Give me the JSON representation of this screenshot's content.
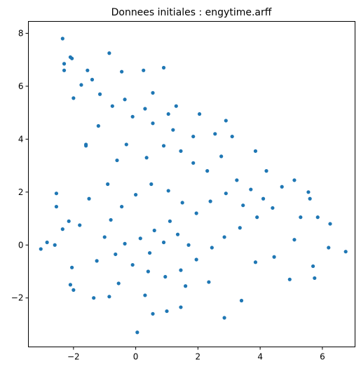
{
  "chart_data": {
    "type": "scatter",
    "title": "Donnees initiales : engytime.arff",
    "xlabel": "",
    "ylabel": "",
    "xlim": [
      -3.45,
      7.05
    ],
    "ylim": [
      -3.85,
      8.45
    ],
    "xticks": [
      -2,
      0,
      2,
      4,
      6
    ],
    "yticks": [
      -2,
      0,
      2,
      4,
      6,
      8
    ],
    "xtick_labels": [
      "−2",
      "0",
      "2",
      "4",
      "6"
    ],
    "ytick_labels": [
      "−2",
      "0",
      "2",
      "4",
      "6",
      "8"
    ],
    "grid": false,
    "legend": "none",
    "marker_color": "#1f77b4",
    "series": [
      {
        "points": [
          [
            -3.05,
            -0.15
          ],
          [
            -2.85,
            0.1
          ],
          [
            -2.55,
            1.95
          ],
          [
            -2.55,
            1.45
          ],
          [
            -2.6,
            0.0
          ],
          [
            -2.35,
            7.8
          ],
          [
            -2.3,
            6.85
          ],
          [
            -2.3,
            6.6
          ],
          [
            -2.1,
            7.1
          ],
          [
            -2.05,
            7.05
          ],
          [
            -2.0,
            5.55
          ],
          [
            -1.75,
            6.05
          ],
          [
            -1.6,
            3.8
          ],
          [
            -0.85,
            7.25
          ],
          [
            -1.55,
            6.6
          ],
          [
            -1.6,
            3.75
          ],
          [
            -2.1,
            -1.5
          ],
          [
            -2.0,
            -1.7
          ],
          [
            -1.35,
            -2.0
          ],
          [
            -0.85,
            -1.95
          ],
          [
            -2.05,
            -0.85
          ],
          [
            -2.35,
            0.6
          ],
          [
            -2.15,
            0.9
          ],
          [
            0.05,
            -3.3
          ],
          [
            0.55,
            -2.6
          ],
          [
            1.0,
            -2.5
          ],
          [
            1.45,
            -2.35
          ],
          [
            2.85,
            -2.75
          ],
          [
            3.4,
            -2.1
          ],
          [
            4.95,
            -1.3
          ],
          [
            5.75,
            -1.25
          ],
          [
            5.7,
            -0.8
          ],
          [
            6.75,
            -0.25
          ],
          [
            6.2,
            -0.1
          ],
          [
            6.25,
            0.8
          ],
          [
            5.85,
            1.05
          ],
          [
            5.6,
            1.75
          ],
          [
            5.55,
            2.0
          ],
          [
            5.1,
            2.45
          ],
          [
            0.9,
            6.7
          ],
          [
            0.25,
            6.6
          ],
          [
            1.3,
            5.25
          ],
          [
            2.05,
            4.95
          ],
          [
            2.9,
            4.7
          ],
          [
            -0.45,
            6.55
          ],
          [
            0.55,
            5.75
          ],
          [
            -1.2,
            4.5
          ],
          [
            -0.6,
            3.2
          ],
          [
            -0.9,
            2.3
          ],
          [
            -1.5,
            1.75
          ],
          [
            -1.8,
            0.75
          ],
          [
            -1.25,
            -0.6
          ],
          [
            -0.55,
            -1.45
          ],
          [
            0.3,
            -1.9
          ],
          [
            1.6,
            -1.55
          ],
          [
            2.35,
            -1.4
          ],
          [
            3.85,
            -0.65
          ],
          [
            4.45,
            -0.45
          ],
          [
            5.1,
            0.2
          ],
          [
            5.3,
            1.05
          ],
          [
            4.7,
            2.2
          ],
          [
            4.2,
            2.8
          ],
          [
            3.85,
            3.55
          ],
          [
            3.1,
            4.1
          ],
          [
            2.55,
            4.2
          ],
          [
            1.85,
            4.1
          ],
          [
            1.2,
            4.35
          ],
          [
            0.55,
            4.6
          ],
          [
            -0.1,
            4.85
          ],
          [
            -0.75,
            5.25
          ],
          [
            -1.15,
            5.7
          ],
          [
            -1.4,
            6.25
          ],
          [
            -0.35,
            5.5
          ],
          [
            0.3,
            5.15
          ],
          [
            1.05,
            4.95
          ],
          [
            -0.3,
            3.8
          ],
          [
            0.35,
            3.3
          ],
          [
            0.9,
            3.75
          ],
          [
            1.45,
            3.55
          ],
          [
            1.85,
            3.1
          ],
          [
            2.3,
            2.8
          ],
          [
            2.75,
            3.35
          ],
          [
            3.25,
            2.45
          ],
          [
            3.7,
            2.1
          ],
          [
            4.1,
            1.75
          ],
          [
            4.4,
            1.4
          ],
          [
            3.9,
            1.05
          ],
          [
            3.35,
            0.65
          ],
          [
            2.85,
            0.3
          ],
          [
            2.45,
            -0.1
          ],
          [
            1.95,
            -0.55
          ],
          [
            1.45,
            -0.95
          ],
          [
            0.95,
            -1.2
          ],
          [
            0.4,
            -1.0
          ],
          [
            -0.1,
            -0.75
          ],
          [
            -0.65,
            -0.35
          ],
          [
            -1.0,
            0.3
          ],
          [
            -0.8,
            0.95
          ],
          [
            -0.45,
            1.45
          ],
          [
            0.0,
            1.9
          ],
          [
            0.5,
            2.3
          ],
          [
            1.05,
            2.05
          ],
          [
            1.5,
            1.6
          ],
          [
            1.95,
            1.2
          ],
          [
            2.4,
            1.65
          ],
          [
            2.9,
            1.95
          ],
          [
            3.45,
            1.5
          ],
          [
            1.1,
            0.9
          ],
          [
            0.6,
            0.55
          ],
          [
            0.15,
            0.25
          ],
          [
            -0.35,
            0.05
          ],
          [
            0.9,
            0.1
          ],
          [
            1.35,
            0.4
          ],
          [
            0.45,
            -0.3
          ],
          [
            1.7,
            0.0
          ]
        ]
      }
    ]
  }
}
